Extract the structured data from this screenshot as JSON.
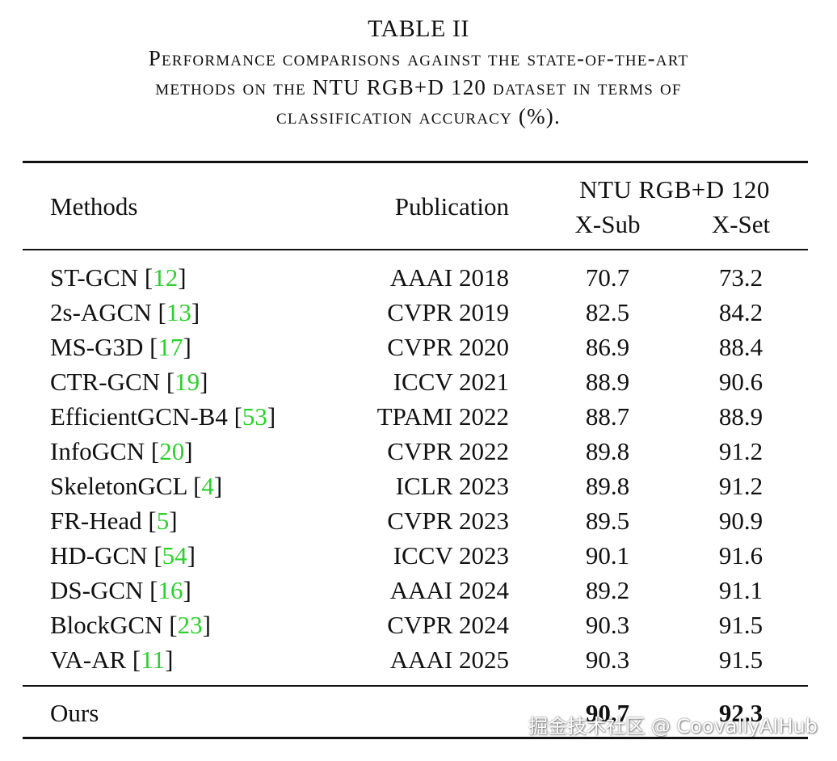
{
  "caption": {
    "table_label": "TABLE II",
    "lines": [
      "Performance comparisons against the state-of-the-art",
      "methods on the NTU RGB+D 120 dataset in terms of",
      "classification accuracy (%)."
    ]
  },
  "header": {
    "methods": "Methods",
    "publication": "Publication",
    "dataset": "NTU RGB+D 120",
    "xsub": "X-Sub",
    "xset": "X-Set"
  },
  "rows": [
    {
      "method": "ST-GCN",
      "ref": "12",
      "publication": "AAAI 2018",
      "xsub": "70.7",
      "xset": "73.2"
    },
    {
      "method": "2s-AGCN",
      "ref": "13",
      "publication": "CVPR 2019",
      "xsub": "82.5",
      "xset": "84.2"
    },
    {
      "method": "MS-G3D",
      "ref": "17",
      "publication": "CVPR 2020",
      "xsub": "86.9",
      "xset": "88.4"
    },
    {
      "method": "CTR-GCN",
      "ref": "19",
      "publication": "ICCV 2021",
      "xsub": "88.9",
      "xset": "90.6"
    },
    {
      "method": "EfficientGCN-B4",
      "ref": "53",
      "publication": "TPAMI 2022",
      "xsub": "88.7",
      "xset": "88.9"
    },
    {
      "method": "InfoGCN",
      "ref": "20",
      "publication": "CVPR 2022",
      "xsub": "89.8",
      "xset": "91.2"
    },
    {
      "method": "SkeletonGCL",
      "ref": "4",
      "publication": "ICLR 2023",
      "xsub": "89.8",
      "xset": "91.2"
    },
    {
      "method": "FR-Head",
      "ref": "5",
      "publication": "CVPR 2023",
      "xsub": "89.5",
      "xset": "90.9"
    },
    {
      "method": "HD-GCN",
      "ref": "54",
      "publication": "ICCV 2023",
      "xsub": "90.1",
      "xset": "91.6"
    },
    {
      "method": "DS-GCN",
      "ref": "16",
      "publication": "AAAI 2024",
      "xsub": "89.2",
      "xset": "91.1"
    },
    {
      "method": "BlockGCN",
      "ref": "23",
      "publication": "CVPR 2024",
      "xsub": "90.3",
      "xset": "91.5"
    },
    {
      "method": "VA-AR",
      "ref": "11",
      "publication": "AAAI 2025",
      "xsub": "90.3",
      "xset": "91.5"
    }
  ],
  "ours": {
    "method": "Ours",
    "xsub": "90.7",
    "xset": "92.3"
  },
  "watermark": "掘金技术社区 @ CoovallyAIHub",
  "colors": {
    "ref_link": "#2bd12b",
    "text": "#111111"
  }
}
